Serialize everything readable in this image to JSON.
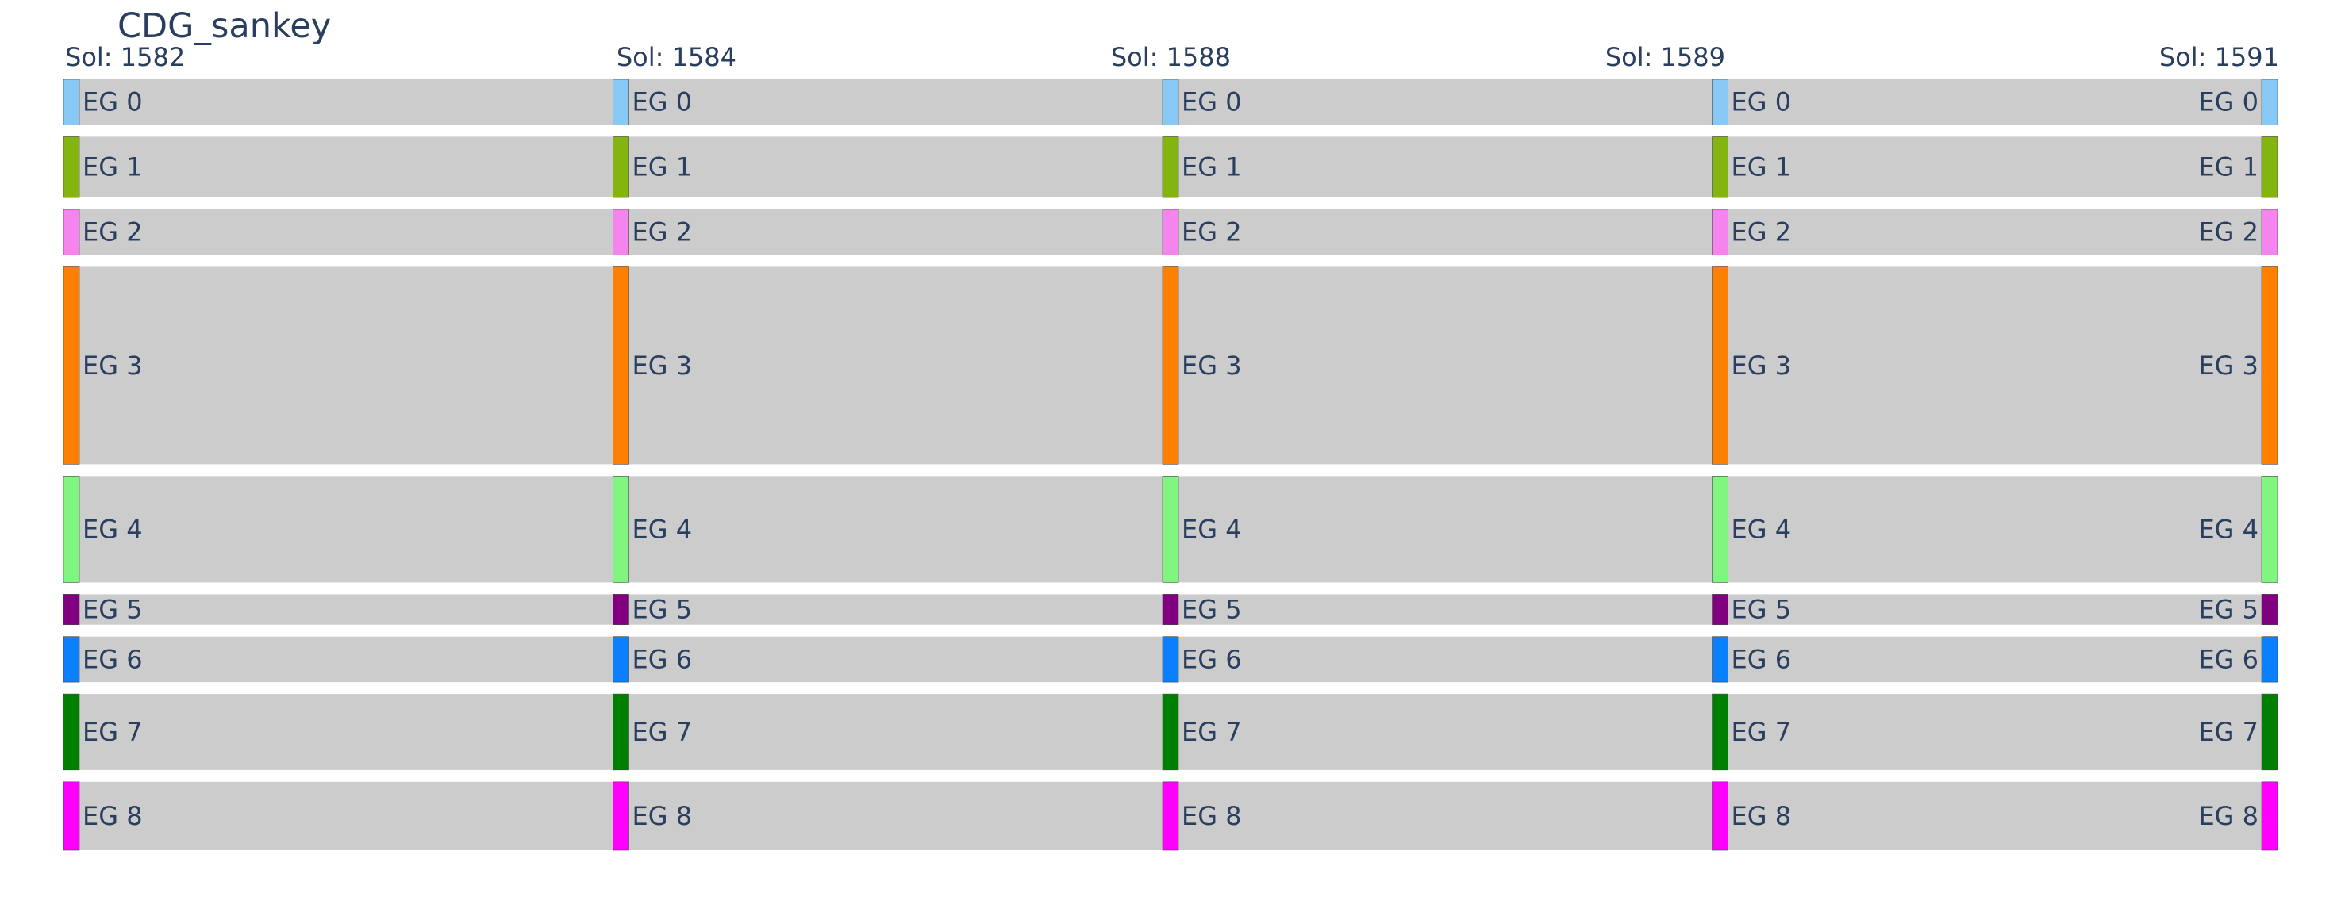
{
  "chart_data": {
    "type": "sankey",
    "title": "CDG_sankey",
    "columns": [
      "Sol: 1582",
      "Sol: 1584",
      "Sol: 1588",
      "Sol: 1589",
      "Sol: 1591"
    ],
    "nodes": [
      {
        "name": "EG 0",
        "color": "#87c8f5",
        "value": 3
      },
      {
        "name": "EG 1",
        "color": "#84b40f",
        "value": 4
      },
      {
        "name": "EG 2",
        "color": "#f584ee",
        "value": 3
      },
      {
        "name": "EG 3",
        "color": "#ff8000",
        "value": 13
      },
      {
        "name": "EG 4",
        "color": "#80f580",
        "value": 7
      },
      {
        "name": "EG 5",
        "color": "#800080",
        "value": 2
      },
      {
        "name": "EG 6",
        "color": "#0a80ff",
        "value": 3
      },
      {
        "name": "EG 7",
        "color": "#008000",
        "value": 5
      },
      {
        "name": "EG 8",
        "color": "#ff00ff",
        "value": 4.5
      }
    ],
    "links": [
      {
        "from": "EG 0",
        "to": "EG 0",
        "between": [
          0,
          1,
          2,
          3,
          4
        ]
      },
      {
        "from": "EG 1",
        "to": "EG 1",
        "between": [
          0,
          1,
          2,
          3,
          4
        ]
      },
      {
        "from": "EG 2",
        "to": "EG 2",
        "between": [
          0,
          1,
          2,
          3,
          4
        ]
      },
      {
        "from": "EG 3",
        "to": "EG 3",
        "between": [
          0,
          1,
          2,
          3,
          4
        ]
      },
      {
        "from": "EG 4",
        "to": "EG 4",
        "between": [
          0,
          1,
          2,
          3,
          4
        ]
      },
      {
        "from": "EG 5",
        "to": "EG 5",
        "between": [
          0,
          1,
          2,
          3,
          4
        ]
      },
      {
        "from": "EG 6",
        "to": "EG 6",
        "between": [
          0,
          1,
          2,
          3,
          4
        ]
      },
      {
        "from": "EG 7",
        "to": "EG 7",
        "between": [
          0,
          1,
          2,
          3,
          4
        ]
      },
      {
        "from": "EG 8",
        "to": "EG 8",
        "between": [
          0,
          1,
          2,
          3,
          4
        ]
      }
    ],
    "band_color": "#cccccc"
  }
}
